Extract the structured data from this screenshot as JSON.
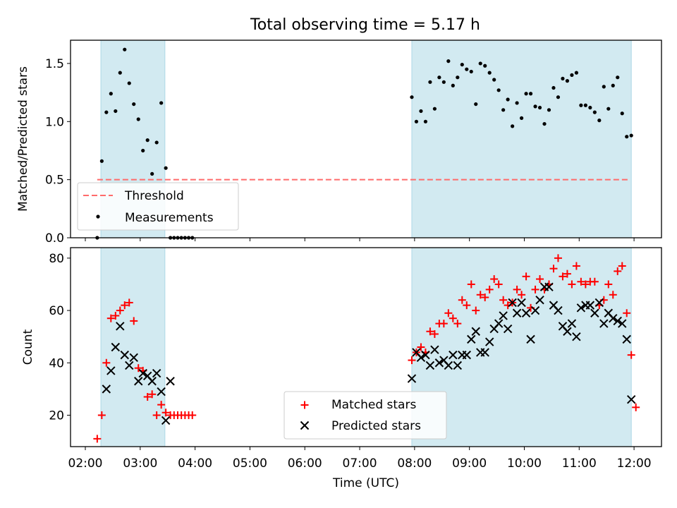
{
  "figure": {
    "title": "Total observing time = 5.17 h",
    "xlabel": "Time (UTC)",
    "x_ticks": [
      "02:00",
      "03:00",
      "04:00",
      "05:00",
      "06:00",
      "07:00",
      "08:00",
      "09:00",
      "10:00",
      "11:00",
      "12:00"
    ],
    "colors": {
      "band": "#add8e6",
      "threshold": "#ff6b6b",
      "matched": "#ff0000",
      "predicted": "#000000",
      "measurement": "#000000"
    }
  },
  "chart_data": [
    {
      "type": "scatter",
      "ylabel": "Matched/Predicted stars",
      "xlim": [
        "02:00",
        "12:00"
      ],
      "ylim": [
        0,
        1.7
      ],
      "y_ticks": [
        "0.0",
        "0.5",
        "1.0",
        "1.5"
      ],
      "shaded_intervals": [
        [
          "02:17",
          "03:27"
        ],
        [
          "07:57",
          "11:57"
        ]
      ],
      "legend": {
        "position": "lower-left",
        "entries": [
          "Threshold",
          "Measurements"
        ]
      },
      "threshold": {
        "name": "Threshold",
        "y": 0.5,
        "x": [
          "02:13",
          "11:55"
        ]
      },
      "series": [
        {
          "name": "Measurements",
          "points": [
            [
              "02:13",
              0.0
            ],
            [
              "02:18",
              0.66
            ],
            [
              "02:23",
              1.08
            ],
            [
              "02:28",
              1.24
            ],
            [
              "02:33",
              1.09
            ],
            [
              "02:38",
              1.42
            ],
            [
              "02:43",
              1.62
            ],
            [
              "02:48",
              1.33
            ],
            [
              "02:53",
              1.15
            ],
            [
              "02:58",
              1.02
            ],
            [
              "03:03",
              0.75
            ],
            [
              "03:08",
              0.84
            ],
            [
              "03:13",
              0.55
            ],
            [
              "03:18",
              0.82
            ],
            [
              "03:23",
              1.16
            ],
            [
              "03:28",
              0.6
            ],
            [
              "03:33",
              0.0
            ],
            [
              "03:37",
              0.0
            ],
            [
              "03:41",
              0.0
            ],
            [
              "03:45",
              0.0
            ],
            [
              "03:49",
              0.0
            ],
            [
              "03:53",
              0.0
            ],
            [
              "03:57",
              0.0
            ],
            [
              "07:57",
              1.21
            ],
            [
              "08:02",
              1.0
            ],
            [
              "08:07",
              1.09
            ],
            [
              "08:12",
              1.0
            ],
            [
              "08:17",
              1.34
            ],
            [
              "08:22",
              1.11
            ],
            [
              "08:27",
              1.38
            ],
            [
              "08:32",
              1.34
            ],
            [
              "08:37",
              1.52
            ],
            [
              "08:42",
              1.31
            ],
            [
              "08:47",
              1.38
            ],
            [
              "08:52",
              1.49
            ],
            [
              "08:57",
              1.45
            ],
            [
              "09:02",
              1.43
            ],
            [
              "09:07",
              1.15
            ],
            [
              "09:12",
              1.5
            ],
            [
              "09:17",
              1.48
            ],
            [
              "09:22",
              1.42
            ],
            [
              "09:27",
              1.36
            ],
            [
              "09:32",
              1.27
            ],
            [
              "09:37",
              1.1
            ],
            [
              "09:42",
              1.19
            ],
            [
              "09:47",
              0.96
            ],
            [
              "09:52",
              1.16
            ],
            [
              "09:57",
              1.03
            ],
            [
              "10:02",
              1.24
            ],
            [
              "10:07",
              1.24
            ],
            [
              "10:12",
              1.13
            ],
            [
              "10:17",
              1.12
            ],
            [
              "10:22",
              0.98
            ],
            [
              "10:27",
              1.1
            ],
            [
              "10:32",
              1.29
            ],
            [
              "10:37",
              1.21
            ],
            [
              "10:42",
              1.37
            ],
            [
              "10:47",
              1.35
            ],
            [
              "10:52",
              1.4
            ],
            [
              "10:57",
              1.42
            ],
            [
              "11:02",
              1.14
            ],
            [
              "11:07",
              1.14
            ],
            [
              "11:12",
              1.12
            ],
            [
              "11:17",
              1.08
            ],
            [
              "11:22",
              1.01
            ],
            [
              "11:27",
              1.3
            ],
            [
              "11:32",
              1.11
            ],
            [
              "11:37",
              1.31
            ],
            [
              "11:42",
              1.38
            ],
            [
              "11:47",
              1.07
            ],
            [
              "11:52",
              0.87
            ],
            [
              "11:57",
              0.88
            ]
          ]
        }
      ]
    },
    {
      "type": "scatter",
      "ylabel": "Count",
      "xlim": [
        "02:00",
        "12:00"
      ],
      "ylim": [
        8,
        84
      ],
      "y_ticks": [
        "20",
        "40",
        "60",
        "80"
      ],
      "shaded_intervals": [
        [
          "02:17",
          "03:27"
        ],
        [
          "07:57",
          "11:57"
        ]
      ],
      "legend": {
        "position": "lower-center",
        "entries": [
          "Matched stars",
          "Predicted stars"
        ]
      },
      "series": [
        {
          "name": "Matched stars",
          "points": [
            [
              "02:13",
              11
            ],
            [
              "02:18",
              20
            ],
            [
              "02:23",
              40
            ],
            [
              "02:28",
              57
            ],
            [
              "02:33",
              58
            ],
            [
              "02:38",
              60
            ],
            [
              "02:43",
              62
            ],
            [
              "02:48",
              63
            ],
            [
              "02:53",
              56
            ],
            [
              "02:58",
              38
            ],
            [
              "03:03",
              37
            ],
            [
              "03:08",
              27
            ],
            [
              "03:13",
              28
            ],
            [
              "03:18",
              20
            ],
            [
              "03:23",
              24
            ],
            [
              "03:28",
              21
            ],
            [
              "03:33",
              20
            ],
            [
              "03:37",
              20
            ],
            [
              "03:41",
              20
            ],
            [
              "03:45",
              20
            ],
            [
              "03:49",
              20
            ],
            [
              "03:53",
              20
            ],
            [
              "03:57",
              20
            ],
            [
              "07:57",
              41
            ],
            [
              "08:02",
              44
            ],
            [
              "08:07",
              46
            ],
            [
              "08:12",
              44
            ],
            [
              "08:17",
              52
            ],
            [
              "08:22",
              51
            ],
            [
              "08:27",
              55
            ],
            [
              "08:32",
              55
            ],
            [
              "08:37",
              59
            ],
            [
              "08:42",
              57
            ],
            [
              "08:47",
              55
            ],
            [
              "08:52",
              64
            ],
            [
              "08:57",
              62
            ],
            [
              "09:02",
              70
            ],
            [
              "09:07",
              60
            ],
            [
              "09:12",
              66
            ],
            [
              "09:17",
              65
            ],
            [
              "09:22",
              68
            ],
            [
              "09:27",
              72
            ],
            [
              "09:32",
              70
            ],
            [
              "09:37",
              64
            ],
            [
              "09:42",
              62
            ],
            [
              "09:47",
              63
            ],
            [
              "09:52",
              68
            ],
            [
              "09:57",
              66
            ],
            [
              "10:02",
              73
            ],
            [
              "10:07",
              61
            ],
            [
              "10:12",
              68
            ],
            [
              "10:17",
              72
            ],
            [
              "10:22",
              68
            ],
            [
              "10:27",
              70
            ],
            [
              "10:32",
              76
            ],
            [
              "10:37",
              80
            ],
            [
              "10:42",
              73
            ],
            [
              "10:47",
              74
            ],
            [
              "10:52",
              70
            ],
            [
              "10:57",
              77
            ],
            [
              "11:02",
              71
            ],
            [
              "11:07",
              70
            ],
            [
              "11:12",
              71
            ],
            [
              "11:17",
              71
            ],
            [
              "11:22",
              62
            ],
            [
              "11:27",
              64
            ],
            [
              "11:32",
              70
            ],
            [
              "11:37",
              66
            ],
            [
              "11:42",
              75
            ],
            [
              "11:47",
              77
            ],
            [
              "11:52",
              59
            ],
            [
              "11:57",
              43
            ],
            [
              "12:02",
              23
            ]
          ]
        },
        {
          "name": "Predicted stars",
          "points": [
            [
              "02:23",
              30
            ],
            [
              "02:28",
              37
            ],
            [
              "02:33",
              46
            ],
            [
              "02:38",
              54
            ],
            [
              "02:43",
              43
            ],
            [
              "02:48",
              39
            ],
            [
              "02:53",
              42
            ],
            [
              "02:58",
              33
            ],
            [
              "03:03",
              36
            ],
            [
              "03:08",
              35
            ],
            [
              "03:13",
              33
            ],
            [
              "03:18",
              36
            ],
            [
              "03:23",
              29
            ],
            [
              "03:28",
              18
            ],
            [
              "03:33",
              33
            ],
            [
              "07:57",
              34
            ],
            [
              "08:02",
              44
            ],
            [
              "08:07",
              42
            ],
            [
              "08:12",
              43
            ],
            [
              "08:17",
              39
            ],
            [
              "08:22",
              45
            ],
            [
              "08:27",
              40
            ],
            [
              "08:32",
              41
            ],
            [
              "08:37",
              39
            ],
            [
              "08:42",
              43
            ],
            [
              "08:47",
              39
            ],
            [
              "08:52",
              43
            ],
            [
              "08:57",
              43
            ],
            [
              "09:02",
              49
            ],
            [
              "09:07",
              52
            ],
            [
              "09:12",
              44
            ],
            [
              "09:17",
              44
            ],
            [
              "09:22",
              48
            ],
            [
              "09:27",
              53
            ],
            [
              "09:32",
              55
            ],
            [
              "09:37",
              58
            ],
            [
              "09:42",
              53
            ],
            [
              "09:47",
              63
            ],
            [
              "09:52",
              59
            ],
            [
              "09:57",
              63
            ],
            [
              "10:02",
              59
            ],
            [
              "10:07",
              49
            ],
            [
              "10:12",
              60
            ],
            [
              "10:17",
              64
            ],
            [
              "10:22",
              69
            ],
            [
              "10:27",
              69
            ],
            [
              "10:32",
              62
            ],
            [
              "10:37",
              60
            ],
            [
              "10:42",
              54
            ],
            [
              "10:47",
              52
            ],
            [
              "10:52",
              55
            ],
            [
              "10:57",
              50
            ],
            [
              "11:02",
              61
            ],
            [
              "11:07",
              62
            ],
            [
              "11:12",
              62
            ],
            [
              "11:17",
              59
            ],
            [
              "11:22",
              63
            ],
            [
              "11:27",
              55
            ],
            [
              "11:32",
              59
            ],
            [
              "11:37",
              57
            ],
            [
              "11:42",
              56
            ],
            [
              "11:47",
              55
            ],
            [
              "11:52",
              49
            ],
            [
              "11:57",
              26
            ]
          ]
        }
      ]
    }
  ]
}
